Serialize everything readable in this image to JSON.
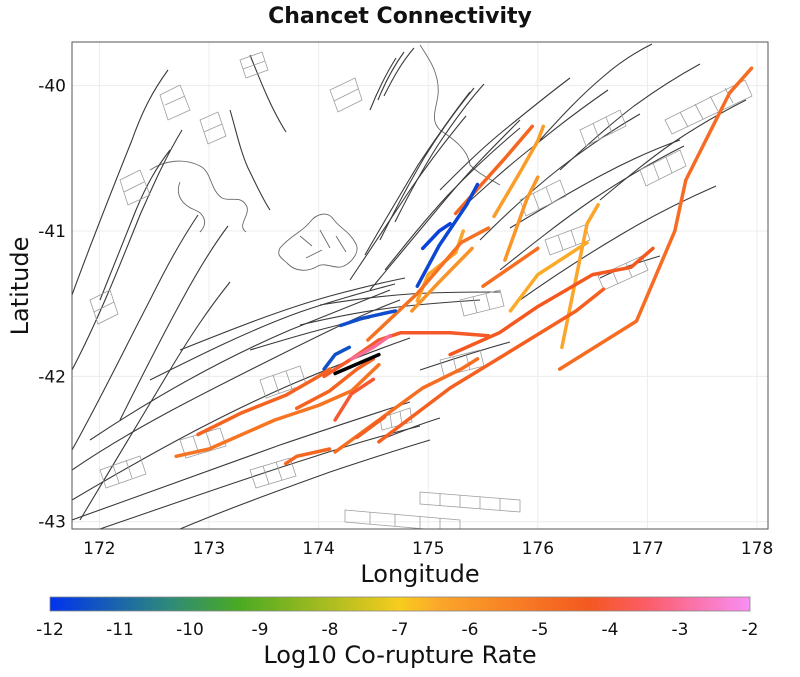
{
  "chart_data": {
    "type": "map",
    "title": "Chancet Connectivity",
    "xlabel": "Longitude",
    "ylabel": "Latitude",
    "xlim": [
      171.75,
      178.1
    ],
    "ylim": [
      -43.05,
      -39.7
    ],
    "xticks": [
      172,
      173,
      174,
      175,
      176,
      177,
      178
    ],
    "xtick_labels": [
      "172",
      "173",
      "174",
      "175",
      "176",
      "177",
      "178"
    ],
    "yticks": [
      -40,
      -41,
      -42,
      -43
    ],
    "ytick_labels": [
      "-40",
      "-41",
      "-42",
      "-43"
    ],
    "colorbar": {
      "label": "Log10 Co-rupture Rate",
      "min": -12,
      "max": -2,
      "ticks": [
        -12,
        -11,
        -10,
        -9,
        -8,
        -7,
        -6,
        -5,
        -4,
        -3,
        -2
      ],
      "tick_labels": [
        "-12",
        "-11",
        "-10",
        "-9",
        "-8",
        "-7",
        "-6",
        "-5",
        "-4",
        "-3",
        "-2"
      ],
      "stops": [
        {
          "value": -12,
          "color": "#0033ee"
        },
        {
          "value": -10.3,
          "color": "#2e8a7a"
        },
        {
          "value": -9.3,
          "color": "#4aaa22"
        },
        {
          "value": -7,
          "color": "#f8cc1e"
        },
        {
          "value": -6.4,
          "color": "#fba52a"
        },
        {
          "value": -4.3,
          "color": "#f4581f"
        },
        {
          "value": -3.5,
          "color": "#fb5c66"
        },
        {
          "value": -2,
          "color": "#f98ef5"
        }
      ]
    },
    "source_fault": {
      "value": "source",
      "color": "#000000",
      "points": [
        [
          174.15,
          -41.98
        ],
        [
          174.55,
          -41.85
        ]
      ]
    },
    "ruptures": [
      {
        "value": -4.85,
        "points": [
          [
            176.2,
            -41.95
          ],
          [
            176.9,
            -41.62
          ],
          [
            177.25,
            -41.0
          ],
          [
            177.35,
            -40.65
          ],
          [
            177.75,
            -40.05
          ],
          [
            177.95,
            -39.88
          ]
        ]
      },
      {
        "value": -6.4,
        "points": [
          [
            176.22,
            -41.8
          ],
          [
            176.45,
            -40.95
          ],
          [
            176.55,
            -40.82
          ]
        ]
      },
      {
        "value": -6.0,
        "points": [
          [
            175.7,
            -41.2
          ],
          [
            175.9,
            -40.78
          ],
          [
            176.0,
            -40.63
          ]
        ]
      },
      {
        "value": -6.5,
        "points": [
          [
            175.75,
            -41.55
          ],
          [
            176.0,
            -41.3
          ],
          [
            176.45,
            -41.08
          ]
        ]
      },
      {
        "value": -4.9,
        "points": [
          [
            175.5,
            -41.38
          ],
          [
            176.0,
            -41.12
          ]
        ]
      },
      {
        "value": -4.3,
        "points": [
          [
            175.2,
            -41.85
          ],
          [
            175.65,
            -41.7
          ],
          [
            176.0,
            -41.52
          ],
          [
            176.5,
            -41.3
          ],
          [
            176.85,
            -41.25
          ],
          [
            177.05,
            -41.12
          ]
        ]
      },
      {
        "value": -4.5,
        "points": [
          [
            174.55,
            -42.45
          ],
          [
            175.2,
            -42.08
          ],
          [
            175.7,
            -41.85
          ],
          [
            176.35,
            -41.55
          ],
          [
            176.6,
            -41.4
          ]
        ]
      },
      {
        "value": -6.35,
        "points": [
          [
            174.9,
            -41.48
          ],
          [
            175.0,
            -41.3
          ],
          [
            175.25,
            -41.15
          ],
          [
            175.32,
            -41.0
          ]
        ]
      },
      {
        "value": -5.9,
        "points": [
          [
            174.85,
            -41.55
          ],
          [
            175.1,
            -41.35
          ],
          [
            175.4,
            -41.12
          ]
        ]
      },
      {
        "value": -5.0,
        "points": [
          [
            174.45,
            -41.75
          ],
          [
            174.9,
            -41.43
          ],
          [
            175.3,
            -41.08
          ],
          [
            175.55,
            -40.98
          ]
        ]
      },
      {
        "value": -4.7,
        "points": [
          [
            175.25,
            -40.88
          ],
          [
            175.7,
            -40.5
          ],
          [
            175.95,
            -40.28
          ]
        ]
      },
      {
        "value": -6.2,
        "points": [
          [
            175.6,
            -40.9
          ],
          [
            175.85,
            -40.58
          ],
          [
            176.0,
            -40.38
          ],
          [
            176.05,
            -40.28
          ]
        ]
      },
      {
        "value": -11.6,
        "points": [
          [
            174.9,
            -41.38
          ],
          [
            175.1,
            -41.1
          ],
          [
            175.35,
            -40.82
          ],
          [
            175.45,
            -40.68
          ]
        ]
      },
      {
        "value": -11.7,
        "points": [
          [
            174.95,
            -41.12
          ],
          [
            175.1,
            -41.0
          ],
          [
            175.2,
            -40.95
          ]
        ]
      },
      {
        "value": -11.5,
        "points": [
          [
            174.2,
            -41.65
          ],
          [
            174.4,
            -41.6
          ],
          [
            174.7,
            -41.55
          ]
        ]
      },
      {
        "value": -11.4,
        "points": [
          [
            174.05,
            -41.95
          ],
          [
            174.15,
            -41.85
          ],
          [
            174.28,
            -41.8
          ]
        ]
      },
      {
        "value": -4.2,
        "points": [
          [
            174.05,
            -42.0
          ],
          [
            174.3,
            -41.88
          ],
          [
            174.55,
            -41.75
          ],
          [
            174.75,
            -41.7
          ],
          [
            175.2,
            -41.7
          ],
          [
            175.55,
            -41.72
          ]
        ]
      },
      {
        "value": -3.0,
        "points": [
          [
            174.3,
            -41.88
          ],
          [
            174.5,
            -41.8
          ],
          [
            174.65,
            -41.72
          ]
        ]
      },
      {
        "value": -4.6,
        "points": [
          [
            172.9,
            -42.4
          ],
          [
            173.3,
            -42.25
          ],
          [
            173.7,
            -42.13
          ],
          [
            174.0,
            -42.0
          ],
          [
            174.1,
            -41.95
          ]
        ]
      },
      {
        "value": -5.05,
        "points": [
          [
            172.7,
            -42.55
          ],
          [
            173.0,
            -42.5
          ],
          [
            173.6,
            -42.3
          ],
          [
            174.0,
            -42.2
          ],
          [
            174.3,
            -42.1
          ],
          [
            174.55,
            -41.92
          ]
        ]
      },
      {
        "value": -4.6,
        "points": [
          [
            173.8,
            -42.22
          ],
          [
            174.1,
            -42.1
          ],
          [
            174.35,
            -41.95
          ],
          [
            174.5,
            -41.88
          ]
        ]
      },
      {
        "value": -4.1,
        "points": [
          [
            174.15,
            -42.3
          ],
          [
            174.3,
            -42.12
          ],
          [
            174.5,
            -42.02
          ]
        ]
      },
      {
        "value": -4.9,
        "points": [
          [
            174.15,
            -42.52
          ],
          [
            174.55,
            -42.3
          ],
          [
            174.95,
            -42.08
          ],
          [
            175.3,
            -41.95
          ],
          [
            175.45,
            -41.88
          ]
        ]
      },
      {
        "value": -4.5,
        "points": [
          [
            174.35,
            -42.42
          ],
          [
            174.6,
            -42.28
          ]
        ]
      },
      {
        "value": -4.7,
        "points": [
          [
            173.7,
            -42.6
          ],
          [
            173.8,
            -42.55
          ],
          [
            174.1,
            -42.5
          ]
        ]
      }
    ]
  }
}
